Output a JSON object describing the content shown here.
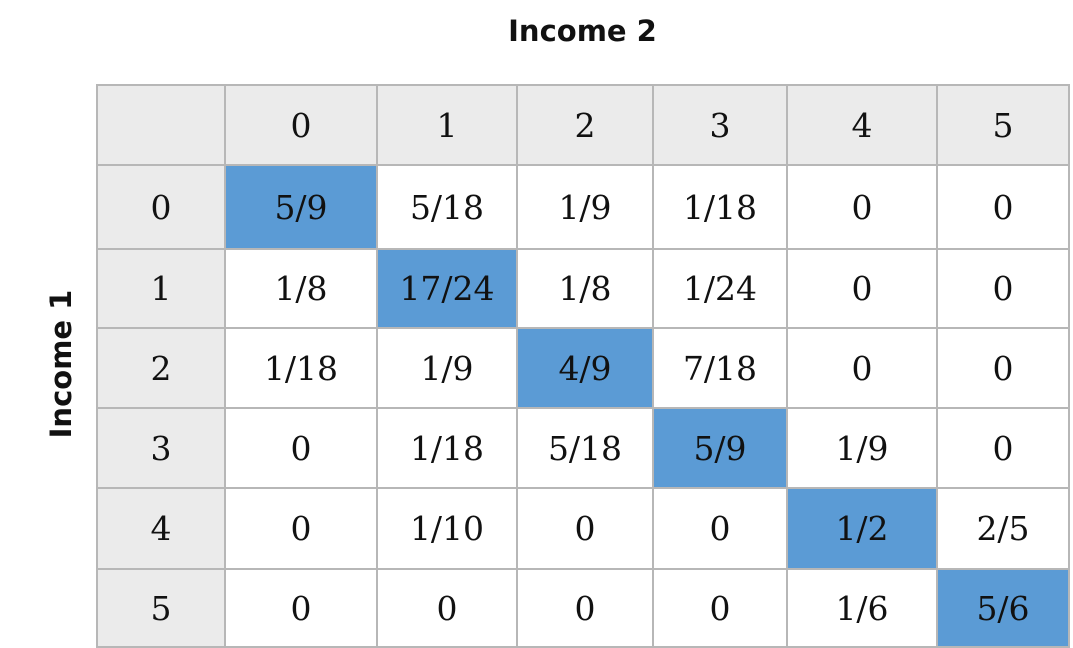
{
  "chart_data": {
    "type": "table",
    "col_axis_label": "Income 2",
    "row_axis_label": "Income 1",
    "col_headers": [
      "0",
      "1",
      "2",
      "3",
      "4",
      "5"
    ],
    "row_headers": [
      "0",
      "1",
      "2",
      "3",
      "4",
      "5"
    ],
    "cells": [
      [
        "5/9",
        "5/18",
        "1/9",
        "1/18",
        "0",
        "0"
      ],
      [
        "1/8",
        "17/24",
        "1/8",
        "1/24",
        "0",
        "0"
      ],
      [
        "1/18",
        "1/9",
        "4/9",
        "7/18",
        "0",
        "0"
      ],
      [
        "0",
        "1/18",
        "5/18",
        "5/9",
        "1/9",
        "0"
      ],
      [
        "0",
        "1/10",
        "0",
        "0",
        "1/2",
        "2/5"
      ],
      [
        "0",
        "0",
        "0",
        "0",
        "1/6",
        "5/6"
      ]
    ],
    "highlight": "diagonal",
    "highlight_color": "#5b9bd5",
    "header_background": "#ebebeb"
  }
}
